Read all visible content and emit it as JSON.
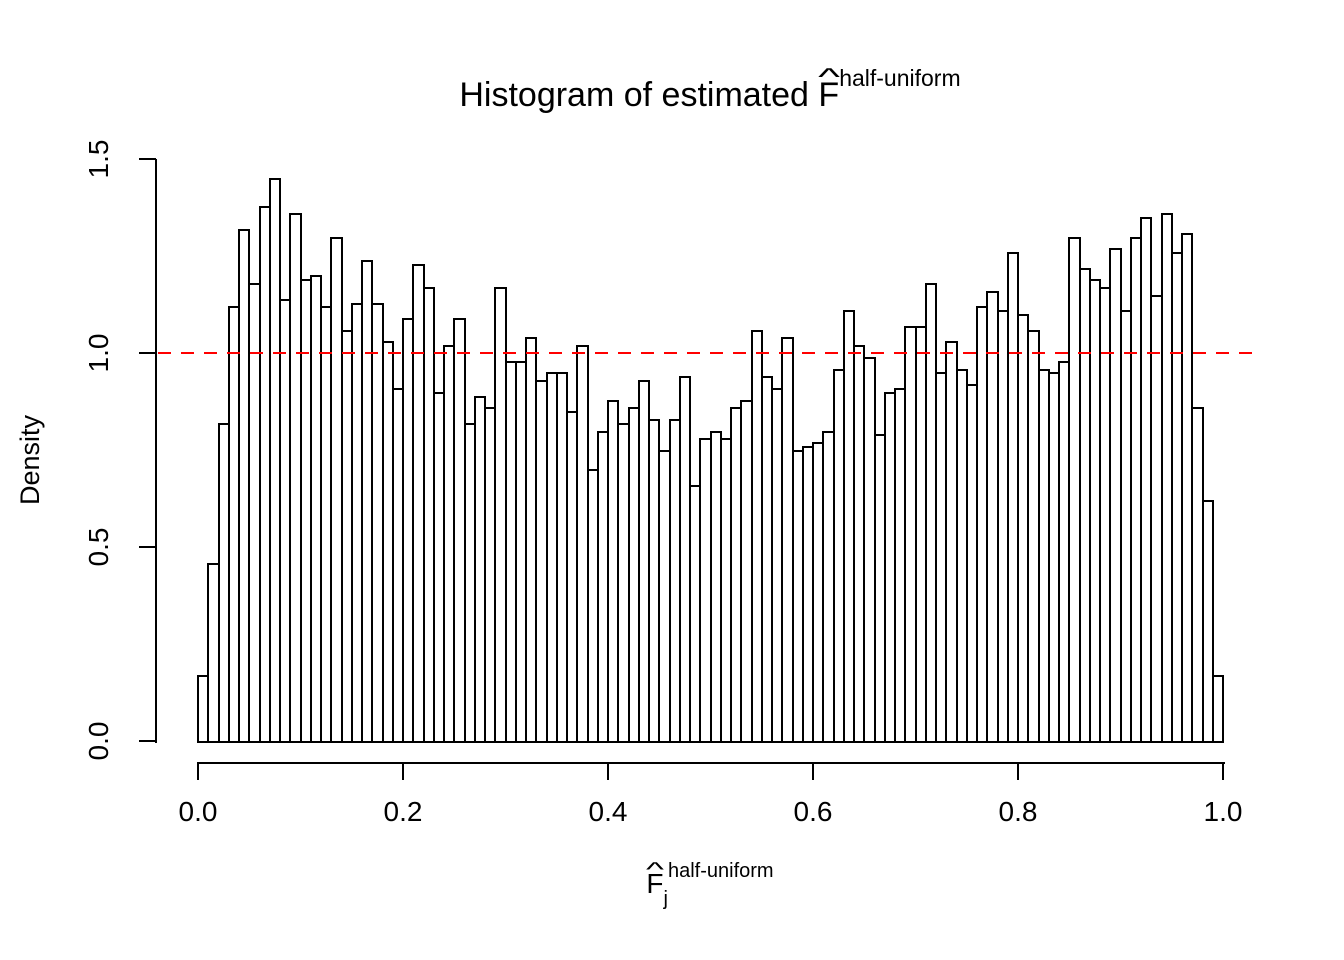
{
  "title": {
    "prefix": "Histogram of estimated",
    "symbol": "F",
    "hat": "^",
    "superscript": "half-uniform"
  },
  "y_axis": {
    "label": "Density",
    "ticks": [
      "0.0",
      "0.5",
      "1.0",
      "1.5"
    ]
  },
  "x_axis": {
    "symbol": "F",
    "hat": "^",
    "subscript": "j",
    "superscript": "half-uniform",
    "ticks": [
      "0.0",
      "0.2",
      "0.4",
      "0.6",
      "0.8",
      "1.0"
    ]
  },
  "reference_line": {
    "y": 1.0,
    "color": "#FF0000",
    "style": "dashed"
  },
  "chart_data": {
    "type": "bar",
    "subtype": "histogram",
    "title": "Histogram of estimated F-hat half-uniform",
    "xlabel": "F-hat_j half-uniform",
    "ylabel": "Density",
    "xlim": [
      0.0,
      1.0
    ],
    "ylim": [
      0.0,
      1.5
    ],
    "x_ticks": [
      0.0,
      0.2,
      0.4,
      0.6,
      0.8,
      1.0
    ],
    "y_ticks": [
      0.0,
      0.5,
      1.0,
      1.5
    ],
    "grid": false,
    "legend": false,
    "bin_start": 0.0,
    "bin_width": 0.01,
    "bar_fill": "#ffffff",
    "bar_stroke": "#000000",
    "reference_line_y": 1.0,
    "reference_line_color": "#FF0000",
    "values": [
      0.17,
      0.46,
      0.82,
      1.12,
      1.32,
      1.18,
      1.38,
      1.45,
      1.14,
      1.36,
      1.19,
      1.2,
      1.12,
      1.3,
      1.06,
      1.13,
      1.24,
      1.13,
      1.03,
      0.91,
      1.09,
      1.23,
      1.17,
      0.9,
      1.02,
      1.09,
      0.82,
      0.89,
      0.86,
      1.17,
      0.98,
      0.98,
      1.04,
      0.93,
      0.95,
      0.95,
      0.85,
      1.02,
      0.7,
      0.8,
      0.88,
      0.82,
      0.86,
      0.93,
      0.83,
      0.75,
      0.83,
      0.94,
      0.66,
      0.78,
      0.8,
      0.78,
      0.86,
      0.88,
      1.06,
      0.94,
      0.91,
      1.04,
      0.75,
      0.76,
      0.77,
      0.8,
      0.96,
      1.11,
      1.02,
      0.99,
      0.79,
      0.9,
      0.91,
      1.07,
      1.07,
      1.18,
      0.95,
      1.03,
      0.96,
      0.92,
      1.12,
      1.16,
      1.11,
      1.26,
      1.1,
      1.06,
      0.96,
      0.95,
      0.98,
      1.3,
      1.22,
      1.19,
      1.17,
      1.27,
      1.11,
      1.3,
      1.35,
      1.15,
      1.36,
      1.26,
      1.31,
      0.86,
      0.62,
      0.17
    ]
  }
}
